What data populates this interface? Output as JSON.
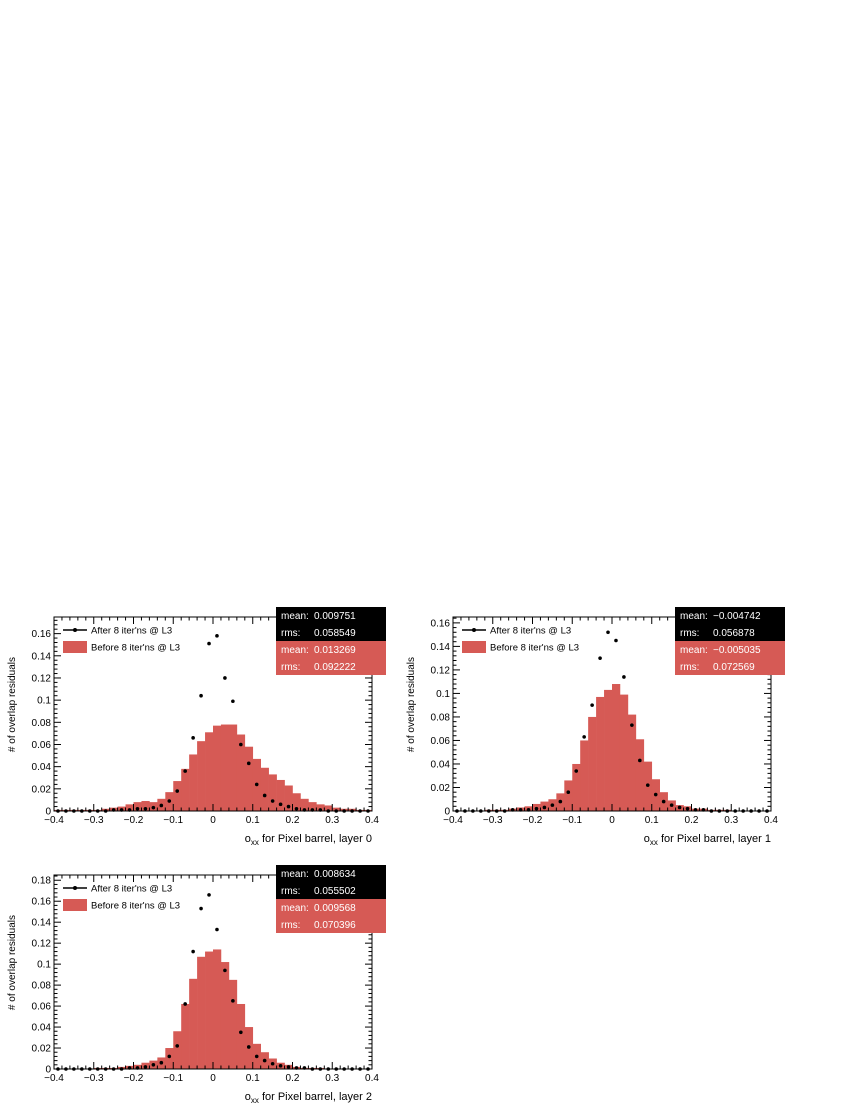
{
  "colors": {
    "before_fill": "#d65a55",
    "after_marker": "#000000",
    "stats_after_bg": "#000000",
    "stats_before_bg": "#d65a55",
    "stats_text": "#ffffff"
  },
  "chart_data": [
    {
      "type": "bar",
      "xlabel": "o_xx for Pixel barrel, layer 0",
      "xlabel_main": "o",
      "xlabel_sub": "xx",
      "xlabel_rest": " for Pixel barrel, layer 0",
      "ylabel": "# of overlap residuals",
      "xlim": [
        -0.4,
        0.4
      ],
      "ylim": [
        0,
        0.175
      ],
      "xticks": [
        "−0.4",
        "−0.3",
        "−0.2",
        "−0.1",
        "0",
        "0.1",
        "0.2",
        "0.3",
        "0.4"
      ],
      "yticks": [
        "0",
        "0.02",
        "0.04",
        "0.06",
        "0.08",
        "0.1",
        "0.12",
        "0.14",
        "0.16"
      ],
      "legend": {
        "after": "After 8 iter'ns @ L3",
        "before": "Before 8 iter'ns @ L3",
        "position": "top-left"
      },
      "stats": {
        "after": {
          "mean_label": "mean:",
          "mean": "0.009751",
          "rms_label": "rms:",
          "rms": "0.058549"
        },
        "before": {
          "mean_label": "mean:",
          "mean": "0.013269",
          "rms_label": "rms:",
          "rms": "0.092222"
        }
      },
      "bin_centers": [
        -0.39,
        -0.37,
        -0.35,
        -0.33,
        -0.31,
        -0.29,
        -0.27,
        -0.25,
        -0.23,
        -0.21,
        -0.19,
        -0.17,
        -0.15,
        -0.13,
        -0.11,
        -0.09,
        -0.07,
        -0.05,
        -0.03,
        -0.01,
        0.01,
        0.03,
        0.05,
        0.07,
        0.09,
        0.11,
        0.13,
        0.15,
        0.17,
        0.19,
        0.21,
        0.23,
        0.25,
        0.27,
        0.29,
        0.31,
        0.33,
        0.35,
        0.37,
        0.39
      ],
      "before_values": [
        0.001,
        0.001,
        0.001,
        0.001,
        0.001,
        0.001,
        0.002,
        0.003,
        0.004,
        0.006,
        0.008,
        0.009,
        0.008,
        0.011,
        0.017,
        0.027,
        0.038,
        0.051,
        0.063,
        0.071,
        0.077,
        0.078,
        0.078,
        0.069,
        0.058,
        0.047,
        0.039,
        0.033,
        0.028,
        0.023,
        0.016,
        0.011,
        0.008,
        0.006,
        0.005,
        0.003,
        0.002,
        0.002,
        0.001,
        0.001
      ],
      "after_values": [
        0.0,
        0.0,
        0.0,
        0.0,
        0.0,
        0.0,
        0.0,
        0.001,
        0.001,
        0.001,
        0.002,
        0.002,
        0.003,
        0.005,
        0.009,
        0.018,
        0.036,
        0.066,
        0.104,
        0.151,
        0.158,
        0.12,
        0.099,
        0.06,
        0.043,
        0.024,
        0.014,
        0.009,
        0.006,
        0.004,
        0.002,
        0.001,
        0.001,
        0.001,
        0.0,
        0.0,
        0.0,
        0.0,
        0.0,
        0.0
      ]
    },
    {
      "type": "bar",
      "xlabel": "o_xx for Pixel barrel, layer 1",
      "xlabel_main": "o",
      "xlabel_sub": "xx",
      "xlabel_rest": " for Pixel barrel, layer 1",
      "ylabel": "# of overlap residuals",
      "xlim": [
        -0.4,
        0.4
      ],
      "ylim": [
        0,
        0.165
      ],
      "xticks": [
        "−0.4",
        "−0.3",
        "−0.2",
        "−0.1",
        "0",
        "0.1",
        "0.2",
        "0.3",
        "0.4"
      ],
      "yticks": [
        "0",
        "0.02",
        "0.04",
        "0.06",
        "0.08",
        "0.1",
        "0.12",
        "0.14",
        "0.16"
      ],
      "legend": {
        "after": "After 8 iter'ns @ L3",
        "before": "Before 8 iter'ns @ L3",
        "position": "top-left"
      },
      "stats": {
        "after": {
          "mean_label": "mean:",
          "mean": "−0.004742",
          "rms_label": "rms:",
          "rms": "0.056878"
        },
        "before": {
          "mean_label": "mean:",
          "mean": "−0.005035",
          "rms_label": "rms:",
          "rms": "0.072569"
        }
      },
      "bin_centers": [
        -0.39,
        -0.37,
        -0.35,
        -0.33,
        -0.31,
        -0.29,
        -0.27,
        -0.25,
        -0.23,
        -0.21,
        -0.19,
        -0.17,
        -0.15,
        -0.13,
        -0.11,
        -0.09,
        -0.07,
        -0.05,
        -0.03,
        -0.01,
        0.01,
        0.03,
        0.05,
        0.07,
        0.09,
        0.11,
        0.13,
        0.15,
        0.17,
        0.19,
        0.21,
        0.23,
        0.25,
        0.27,
        0.29,
        0.31,
        0.33,
        0.35,
        0.37,
        0.39
      ],
      "before_values": [
        0.0,
        0.0,
        0.0,
        0.0,
        0.001,
        0.001,
        0.001,
        0.002,
        0.003,
        0.004,
        0.006,
        0.008,
        0.01,
        0.015,
        0.026,
        0.04,
        0.06,
        0.08,
        0.097,
        0.103,
        0.108,
        0.099,
        0.082,
        0.061,
        0.042,
        0.027,
        0.016,
        0.009,
        0.005,
        0.004,
        0.002,
        0.002,
        0.001,
        0.001,
        0.001,
        0.0,
        0.0,
        0.0,
        0.0,
        0.0
      ],
      "after_values": [
        0.0,
        0.0,
        0.0,
        0.0,
        0.0,
        0.0,
        0.0,
        0.001,
        0.001,
        0.001,
        0.002,
        0.003,
        0.005,
        0.008,
        0.016,
        0.034,
        0.063,
        0.09,
        0.13,
        0.152,
        0.145,
        0.114,
        0.073,
        0.043,
        0.022,
        0.014,
        0.008,
        0.005,
        0.003,
        0.002,
        0.001,
        0.001,
        0.0,
        0.0,
        0.0,
        0.0,
        0.0,
        0.0,
        0.0,
        0.0
      ]
    },
    {
      "type": "bar",
      "xlabel": "o_xx for Pixel barrel, layer 2",
      "xlabel_main": "o",
      "xlabel_sub": "xx",
      "xlabel_rest": " for Pixel barrel, layer 2",
      "ylabel": "# of overlap residuals",
      "xlim": [
        -0.4,
        0.4
      ],
      "ylim": [
        0,
        0.185
      ],
      "xticks": [
        "−0.4",
        "−0.3",
        "−0.2",
        "−0.1",
        "0",
        "0.1",
        "0.2",
        "0.3",
        "0.4"
      ],
      "yticks": [
        "0",
        "0.02",
        "0.04",
        "0.06",
        "0.08",
        "0.1",
        "0.12",
        "0.14",
        "0.16",
        "0.18"
      ],
      "legend": {
        "after": "After 8 iter'ns @ L3",
        "before": "Before 8 iter'ns @ L3",
        "position": "top-left"
      },
      "stats": {
        "after": {
          "mean_label": "mean:",
          "mean": "0.008634",
          "rms_label": "rms:",
          "rms": "0.055502"
        },
        "before": {
          "mean_label": "mean:",
          "mean": "0.009568",
          "rms_label": "rms:",
          "rms": "0.070396"
        }
      },
      "bin_centers": [
        -0.39,
        -0.37,
        -0.35,
        -0.33,
        -0.31,
        -0.29,
        -0.27,
        -0.25,
        -0.23,
        -0.21,
        -0.19,
        -0.17,
        -0.15,
        -0.13,
        -0.11,
        -0.09,
        -0.07,
        -0.05,
        -0.03,
        -0.01,
        0.01,
        0.03,
        0.05,
        0.07,
        0.09,
        0.11,
        0.13,
        0.15,
        0.17,
        0.19,
        0.21,
        0.23,
        0.25,
        0.27,
        0.29,
        0.31,
        0.33,
        0.35,
        0.37,
        0.39
      ],
      "before_values": [
        0.0,
        0.0,
        0.0,
        0.0,
        0.0,
        0.001,
        0.001,
        0.001,
        0.002,
        0.003,
        0.004,
        0.006,
        0.008,
        0.011,
        0.02,
        0.036,
        0.062,
        0.086,
        0.107,
        0.112,
        0.114,
        0.102,
        0.085,
        0.062,
        0.04,
        0.024,
        0.016,
        0.01,
        0.006,
        0.004,
        0.002,
        0.001,
        0.001,
        0.001,
        0.0,
        0.0,
        0.0,
        0.0,
        0.0,
        0.0
      ],
      "after_values": [
        0.0,
        0.0,
        0.0,
        0.0,
        0.0,
        0.0,
        0.0,
        0.0,
        0.0,
        0.001,
        0.001,
        0.002,
        0.004,
        0.006,
        0.012,
        0.022,
        0.062,
        0.112,
        0.153,
        0.166,
        0.133,
        0.094,
        0.065,
        0.035,
        0.021,
        0.012,
        0.008,
        0.005,
        0.003,
        0.002,
        0.001,
        0.001,
        0.0,
        0.0,
        0.0,
        0.0,
        0.0,
        0.0,
        0.0,
        0.0
      ]
    }
  ]
}
